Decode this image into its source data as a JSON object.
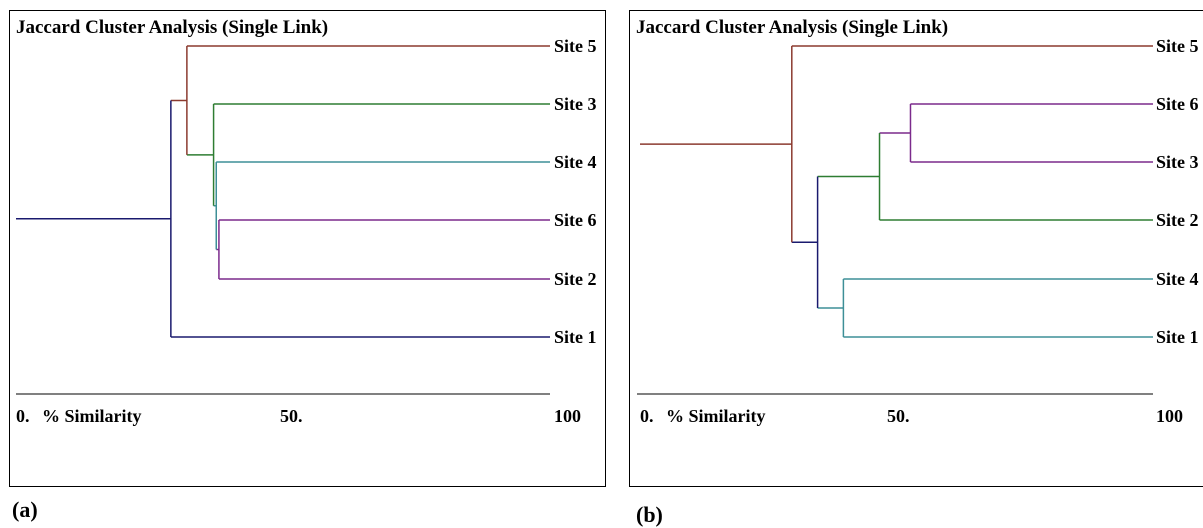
{
  "panels": [
    {
      "tag": "(a)",
      "title": "Jaccard Cluster Analysis (Single Link)",
      "leaves": [
        "Site 5",
        "Site 3",
        "Site 4",
        "Site 6",
        "Site 2",
        "Site 1"
      ],
      "axis": {
        "start_label": "0.",
        "name_label": "% Similarity",
        "mid_label": "50.",
        "end_label": "100"
      }
    },
    {
      "tag": "(b)",
      "title": "Jaccard Cluster Analysis (Single Link)",
      "leaves": [
        "Site 5",
        "Site 6",
        "Site 3",
        "Site 2",
        "Site 4",
        "Site 1"
      ],
      "axis": {
        "start_label": "0.",
        "name_label": "% Similarity",
        "mid_label": "50.",
        "end_label": "100"
      }
    }
  ],
  "chart_data": [
    {
      "type": "dendrogram",
      "title": "Jaccard Cluster Analysis (Single Link)",
      "xlabel": "% Similarity",
      "xlim": [
        0,
        100
      ],
      "x_ticks": [
        "0.",
        "50.",
        "100"
      ],
      "leaf_order": [
        "Site 5",
        "Site 3",
        "Site 4",
        "Site 6",
        "Site 2",
        "Site 1"
      ],
      "merges": [
        {
          "members": [
            "Site 6",
            "Site 2"
          ],
          "similarity": 38,
          "color": "#7b2a8c"
        },
        {
          "members": [
            "Site 4",
            "Site 6",
            "Site 2"
          ],
          "similarity": 37.5,
          "color": "#3d8f97"
        },
        {
          "members": [
            "Site 3",
            "Site 4",
            "Site 6",
            "Site 2"
          ],
          "similarity": 37,
          "color": "#2e7d32"
        },
        {
          "members": [
            "Site 5",
            "Site 3",
            "Site 4",
            "Site 6",
            "Site 2"
          ],
          "similarity": 32,
          "color": "#8b3a2f"
        },
        {
          "members": [
            "Site 5",
            "Site 3",
            "Site 4",
            "Site 6",
            "Site 2",
            "Site 1"
          ],
          "similarity": 29,
          "color": "#1a1a6e"
        }
      ]
    },
    {
      "type": "dendrogram",
      "title": "Jaccard Cluster Analysis (Single Link)",
      "xlabel": "% Similarity",
      "xlim": [
        0,
        100
      ],
      "x_ticks": [
        "0.",
        "50.",
        "100"
      ],
      "leaf_order": [
        "Site 5",
        "Site 6",
        "Site 3",
        "Site 2",
        "Site 4",
        "Site 1"
      ],
      "merges": [
        {
          "members": [
            "Site 6",
            "Site 3"
          ],
          "similarity": 53,
          "color": "#7b2a8c"
        },
        {
          "members": [
            "Site 6",
            "Site 3",
            "Site 2"
          ],
          "similarity": 47,
          "color": "#2e7d32"
        },
        {
          "members": [
            "Site 4",
            "Site 1"
          ],
          "similarity": 40,
          "color": "#3d8f97"
        },
        {
          "members": [
            "Site 6",
            "Site 3",
            "Site 2",
            "Site 4",
            "Site 1"
          ],
          "similarity": 35,
          "color": "#1a1a6e"
        },
        {
          "members": [
            "Site 5",
            "Site 6",
            "Site 3",
            "Site 2",
            "Site 4",
            "Site 1"
          ],
          "similarity": 30,
          "color": "#8b3a2f"
        }
      ]
    }
  ]
}
